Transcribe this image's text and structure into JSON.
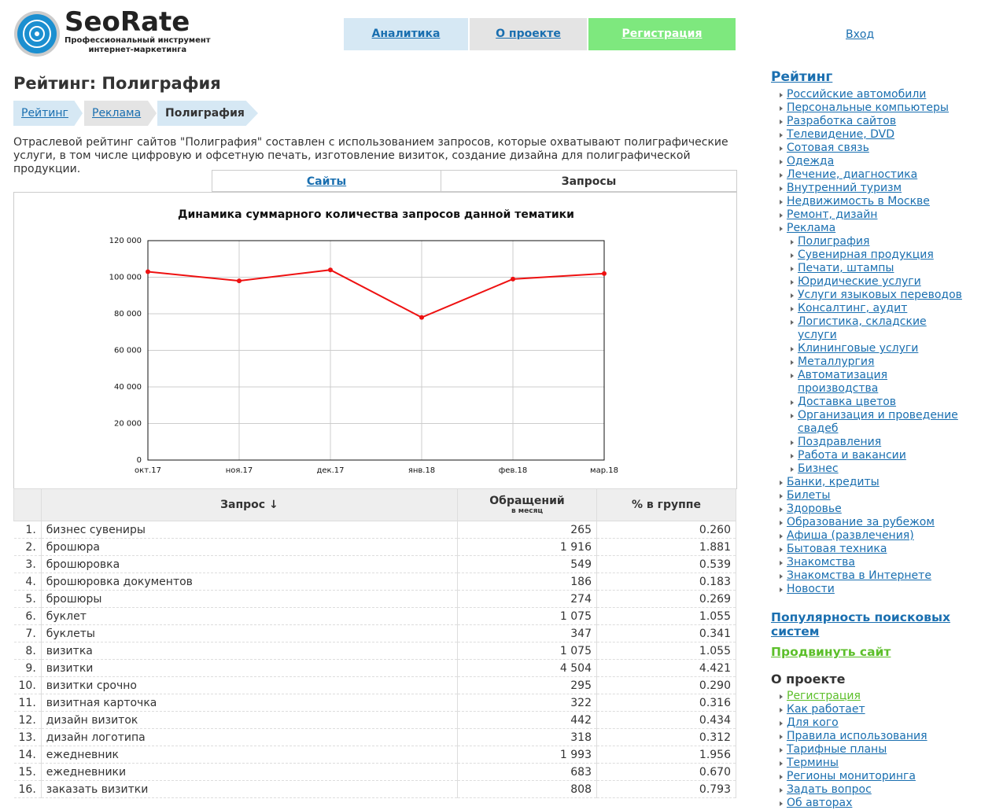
{
  "header": {
    "logo_title": "SeoRate",
    "logo_subtitle": [
      "Профессиональный инструмент",
      "интернет-маркетинга"
    ],
    "nav": [
      "Аналитика",
      "О проекте",
      "Регистрация"
    ],
    "login": "Вход"
  },
  "page_title": "Рейтинг: Полиграфия",
  "breadcrumbs": [
    "Рейтинг",
    "Реклама",
    "Полиграфия"
  ],
  "description": "Отраслевой рейтинг сайтов \"Полиграфия\" составлен с использованием запросов, которые охватывают полиграфические услуги, в том числе цифровую и офсетную печать, изготовление визиток, создание дизайна для полиграфической продукции.",
  "tabs": [
    "Сайты",
    "Запросы"
  ],
  "chart_data": {
    "type": "line",
    "title": "Динамика суммарного количества запросов данной тематики",
    "categories": [
      "окт.17",
      "ноя.17",
      "дек.17",
      "янв.18",
      "фев.18",
      "мар.18"
    ],
    "values": [
      103000,
      98000,
      104000,
      78000,
      99000,
      102000
    ],
    "color": "#ee1111",
    "ylim": [
      0,
      120000
    ],
    "yticks": [
      0,
      {
        "value": 20000,
        "label": "20 000"
      },
      {
        "value": 40000,
        "label": "40 000"
      },
      {
        "value": 60000,
        "label": "60 000"
      },
      {
        "value": 80000,
        "label": "80 000"
      },
      {
        "value": 100000,
        "label": "100 000"
      },
      {
        "value": 120000,
        "label": "120 000"
      }
    ],
    "grid": true
  },
  "table": {
    "headers": [
      "Запрос ↓",
      "Обращений",
      "в месяц",
      "% в группе"
    ],
    "rows": [
      [
        "1.",
        "бизнес сувениры",
        "265",
        "0.260"
      ],
      [
        "2.",
        "брошюра",
        "1 916",
        "1.881"
      ],
      [
        "3.",
        "брошюровка",
        "549",
        "0.539"
      ],
      [
        "4.",
        "брошюровка документов",
        "186",
        "0.183"
      ],
      [
        "5.",
        "брошюры",
        "274",
        "0.269"
      ],
      [
        "6.",
        "буклет",
        "1 075",
        "1.055"
      ],
      [
        "7.",
        "буклеты",
        "347",
        "0.341"
      ],
      [
        "8.",
        "визитка",
        "1 075",
        "1.055"
      ],
      [
        "9.",
        "визитки",
        "4 504",
        "4.421"
      ],
      [
        "10.",
        "визитки срочно",
        "295",
        "0.290"
      ],
      [
        "11.",
        "визитная карточка",
        "322",
        "0.316"
      ],
      [
        "12.",
        "дизайн визиток",
        "442",
        "0.434"
      ],
      [
        "13.",
        "дизайн логотипа",
        "318",
        "0.312"
      ],
      [
        "14.",
        "ежедневник",
        "1 993",
        "1.956"
      ],
      [
        "15.",
        "ежедневники",
        "683",
        "0.670"
      ],
      [
        "16.",
        "заказать визитки",
        "808",
        "0.793"
      ]
    ]
  },
  "sidebar": {
    "rating": {
      "title": "Рейтинг",
      "items": [
        {
          "label": "Российские автомобили"
        },
        {
          "label": "Персональные компьютеры"
        },
        {
          "label": "Разработка сайтов"
        },
        {
          "label": "Телевидение, DVD"
        },
        {
          "label": "Сотовая связь"
        },
        {
          "label": "Одежда"
        },
        {
          "label": "Лечение, диагностика"
        },
        {
          "label": "Внутренний туризм"
        },
        {
          "label": "Недвижимость в Москве"
        },
        {
          "label": "Ремонт, дизайн"
        },
        {
          "label": "Реклама",
          "children": [
            "Полиграфия",
            "Сувенирная продукция",
            "Печати, штампы",
            "Юридические услуги",
            "Услуги языковых переводов",
            "Консалтинг, аудит",
            "Логистика, складские услуги",
            "Клининговые услуги",
            "Металлургия",
            "Автоматизация производства",
            "Доставка цветов",
            "Организация и проведение свадеб",
            "Поздравления",
            "Работа и вакансии",
            "Бизнес"
          ]
        },
        {
          "label": "Банки, кредиты"
        },
        {
          "label": "Билеты"
        },
        {
          "label": "Здоровье"
        },
        {
          "label": "Образование за рубежом"
        },
        {
          "label": "Афиша (развлечения)"
        },
        {
          "label": "Бытовая техника"
        },
        {
          "label": "Знакомства"
        },
        {
          "label": "Знакомства в Интернете"
        },
        {
          "label": "Новости"
        }
      ]
    },
    "popularity": "Популярность поисковых систем",
    "promote": "Продвинуть сайт",
    "about": {
      "title": "О проекте",
      "items": [
        "Регистрация",
        "Как работает",
        "Для кого",
        "Правила использования",
        "Тарифные планы",
        "Термины",
        "Регионы мониторинга",
        "Задать вопрос",
        "Об авторах"
      ]
    }
  }
}
